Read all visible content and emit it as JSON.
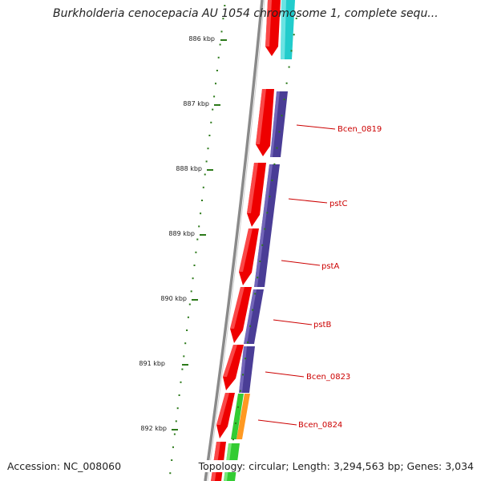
{
  "title": "Burkholderia cenocepacia AU 1054 chromosome 1, complete sequ...",
  "footer": {
    "accession": "Accession: NC_008060",
    "summary": "Topology: circular; Length: 3,294,563 bp; Genes: 3,034"
  },
  "colors": {
    "backbone": "#8a8a8a",
    "cds_forward": "#ee0000",
    "cds_reverse": "#4a3d96",
    "tick": "#2c7a1a",
    "label": "#cc0000",
    "cyan_feature": "#22cccc",
    "green_feature": "#33cc33",
    "orange_feature": "#ff9922"
  },
  "ticks": [
    {
      "label": "886 kbp"
    },
    {
      "label": "887 kbp"
    },
    {
      "label": "888 kbp"
    },
    {
      "label": "889 kbp"
    },
    {
      "label": "890 kbp"
    },
    {
      "label": "891 kbp"
    },
    {
      "label": "892 kbp"
    }
  ],
  "gene_labels": [
    {
      "name": "Bcen_0819"
    },
    {
      "name": "pstC"
    },
    {
      "name": "pstA"
    },
    {
      "name": "pstB"
    },
    {
      "name": "Bcen_0823"
    },
    {
      "name": "Bcen_0824"
    }
  ]
}
